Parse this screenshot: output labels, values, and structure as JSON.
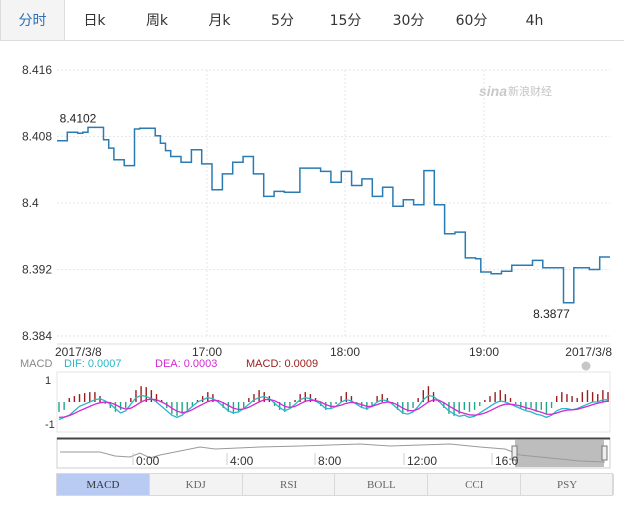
{
  "tabs": [
    {
      "label": "分时",
      "active": true
    },
    {
      "label": "日k"
    },
    {
      "label": "周k"
    },
    {
      "label": "月k"
    },
    {
      "label": "5分"
    },
    {
      "label": "15分"
    },
    {
      "label": "30分"
    },
    {
      "label": "60分"
    },
    {
      "label": "4h"
    }
  ],
  "watermark": "新浪财经",
  "colors": {
    "price_line": "#2a7bb4",
    "dif": "#2bb6c9",
    "dea": "#d12ad0",
    "macd_up": "#9b1c1c",
    "macd_down": "#1fa58a",
    "active_tab": "#2a6fb8"
  },
  "macd_legend": {
    "name": "MACD",
    "dif": "DIF: 0.0007",
    "dea": "DEA: 0.0003",
    "macd": "MACD: 0.0009"
  },
  "indicators": [
    "MACD",
    "KDJ",
    "RSI",
    "BOLL",
    "CCI",
    "PSY"
  ],
  "active_indicator": "MACD",
  "navigator_labels": [
    "0:00",
    "4:00",
    "8:00",
    "12:00",
    "16:0"
  ],
  "chart_data": {
    "type": "line",
    "y_ticks": [
      "8.416",
      "8.408",
      "8.4",
      "8.392",
      "8.384"
    ],
    "ylim": [
      8.384,
      8.416
    ],
    "x_labels": [
      "2017/3/8",
      "17:00",
      "18:00",
      "19:00",
      "2017/3/8"
    ],
    "annotations": {
      "high": "8.4102",
      "low": "8.3877"
    },
    "series": [
      {
        "values": [
          8.4075,
          8.4075,
          8.4085,
          8.4085,
          8.4084,
          8.4085,
          8.4091,
          8.4091,
          8.4091,
          8.4076,
          8.4066,
          8.4052,
          8.4052,
          8.4045,
          8.4045,
          8.4089,
          8.409,
          8.409,
          8.409,
          8.4081,
          8.4072,
          8.4063,
          8.4056,
          8.4056,
          8.4049,
          8.4049,
          8.4064,
          8.4064,
          8.4047,
          8.4047,
          8.4016,
          8.4016,
          8.4035,
          8.4035,
          8.4049,
          8.4049,
          8.4056,
          8.4056,
          8.4035,
          8.4035,
          8.4008,
          8.4008,
          8.4014,
          8.4014,
          8.4013,
          8.4013,
          8.4013,
          8.4042,
          8.4042,
          8.4042,
          8.4042,
          8.4038,
          8.4038,
          8.4025,
          8.4025,
          8.4038,
          8.4038,
          8.4021,
          8.4021,
          8.4029,
          8.4029,
          8.4008,
          8.4008,
          8.4019,
          8.4019,
          8.3996,
          8.3996,
          8.4004,
          8.4004,
          8.3998,
          8.3998,
          8.4039,
          8.4039,
          8.3998,
          8.3998,
          8.3963,
          8.3963,
          8.3965,
          8.3965,
          8.3934,
          8.3934,
          8.3933,
          8.3917,
          8.3917,
          8.3915,
          8.3915,
          8.3918,
          8.3918,
          8.3925,
          8.3925,
          8.3925,
          8.3925,
          8.3931,
          8.3931,
          8.3922,
          8.3922,
          8.3922,
          8.3922,
          8.388,
          8.388,
          8.3922,
          8.3922,
          8.3922,
          8.392,
          8.392,
          8.3935,
          8.3935,
          8.3935
        ]
      }
    ],
    "macd": {
      "ylim": [
        -1,
        1
      ],
      "y_ticks": [
        "1",
        "-1"
      ],
      "hist": [
        -0.5,
        -0.4,
        0.2,
        0.3,
        0.4,
        0.45,
        0.5,
        0.5,
        0.3,
        -0.1,
        -0.3,
        -0.5,
        -0.4,
        -0.3,
        0.2,
        0.6,
        0.8,
        0.75,
        0.6,
        0.4,
        0.1,
        -0.3,
        -0.6,
        -0.7,
        -0.6,
        -0.4,
        -0.2,
        0.1,
        0.3,
        0.5,
        0.4,
        0.1,
        -0.3,
        -0.5,
        -0.6,
        -0.5,
        -0.3,
        0.2,
        0.4,
        0.6,
        0.5,
        0.3,
        -0.2,
        -0.4,
        -0.5,
        -0.3,
        0.1,
        0.4,
        0.5,
        0.4,
        0.2,
        -0.2,
        -0.4,
        -0.3,
        -0.1,
        0.3,
        0.5,
        0.3,
        -0.1,
        -0.3,
        -0.4,
        -0.2,
        0.3,
        0.4,
        0.2,
        -0.1,
        -0.4,
        -0.6,
        -0.5,
        -0.3,
        0.2,
        0.6,
        0.8,
        0.5,
        0.1,
        -0.3,
        -0.6,
        -0.7,
        -0.6,
        -0.4,
        -0.5,
        -0.4,
        -0.2,
        0.1,
        0.3,
        0.5,
        0.6,
        0.4,
        0.2,
        -0.1,
        -0.3,
        -0.4,
        -0.3,
        -0.5,
        -0.4,
        -0.6,
        -0.3,
        0.3,
        0.5,
        0.4,
        0.3,
        0.2,
        0.5,
        0.6,
        0.5,
        0.4,
        0.6,
        0.5
      ],
      "dif": [
        -0.8,
        -0.7,
        -0.6,
        -0.4,
        -0.2,
        -0.1,
        0.0,
        0.1,
        0.15,
        0.05,
        -0.1,
        -0.3,
        -0.5,
        -0.4,
        -0.1,
        0.2,
        0.3,
        0.25,
        0.15,
        0.0,
        -0.2,
        -0.4,
        -0.6,
        -0.7,
        -0.6,
        -0.4,
        -0.2,
        0.0,
        0.1,
        0.2,
        0.15,
        0.0,
        -0.2,
        -0.4,
        -0.5,
        -0.45,
        -0.3,
        -0.1,
        0.1,
        0.2,
        0.25,
        0.15,
        -0.05,
        -0.25,
        -0.4,
        -0.3,
        -0.1,
        0.1,
        0.2,
        0.15,
        0.05,
        -0.1,
        -0.3,
        -0.3,
        -0.2,
        0.0,
        0.1,
        0.05,
        -0.1,
        -0.25,
        -0.3,
        -0.2,
        0.0,
        0.1,
        0.05,
        -0.1,
        -0.3,
        -0.5,
        -0.55,
        -0.45,
        -0.2,
        0.1,
        0.3,
        0.25,
        0.05,
        -0.2,
        -0.4,
        -0.55,
        -0.65,
        -0.6,
        -0.7,
        -0.65,
        -0.5,
        -0.35,
        -0.2,
        -0.05,
        0.05,
        0.0,
        -0.1,
        -0.2,
        -0.3,
        -0.4,
        -0.45,
        -0.55,
        -0.6,
        -0.7,
        -0.6,
        -0.4,
        -0.3,
        -0.3,
        -0.35,
        -0.3,
        -0.2,
        -0.1,
        0.0,
        0.0,
        0.1,
        0.1
      ],
      "dea": [
        -0.7,
        -0.68,
        -0.62,
        -0.52,
        -0.4,
        -0.3,
        -0.2,
        -0.1,
        -0.03,
        0.0,
        -0.03,
        -0.12,
        -0.25,
        -0.32,
        -0.28,
        -0.15,
        0.0,
        0.1,
        0.13,
        0.1,
        0.0,
        -0.12,
        -0.28,
        -0.42,
        -0.48,
        -0.45,
        -0.35,
        -0.22,
        -0.1,
        0.02,
        0.08,
        0.06,
        -0.03,
        -0.16,
        -0.28,
        -0.34,
        -0.32,
        -0.24,
        -0.12,
        0.0,
        0.1,
        0.12,
        0.06,
        -0.06,
        -0.2,
        -0.25,
        -0.2,
        -0.08,
        0.03,
        0.08,
        0.07,
        0.0,
        -0.12,
        -0.2,
        -0.2,
        -0.14,
        -0.06,
        -0.02,
        -0.05,
        -0.12,
        -0.2,
        -0.2,
        -0.12,
        -0.04,
        0.0,
        -0.03,
        -0.13,
        -0.28,
        -0.38,
        -0.4,
        -0.32,
        -0.16,
        0.0,
        0.1,
        0.08,
        -0.03,
        -0.18,
        -0.32,
        -0.45,
        -0.52,
        -0.58,
        -0.6,
        -0.57,
        -0.5,
        -0.4,
        -0.28,
        -0.17,
        -0.1,
        -0.1,
        -0.13,
        -0.18,
        -0.26,
        -0.32,
        -0.4,
        -0.47,
        -0.55,
        -0.56,
        -0.5,
        -0.42,
        -0.37,
        -0.36,
        -0.33,
        -0.27,
        -0.2,
        -0.12,
        -0.06,
        0.0,
        0.04
      ]
    }
  }
}
